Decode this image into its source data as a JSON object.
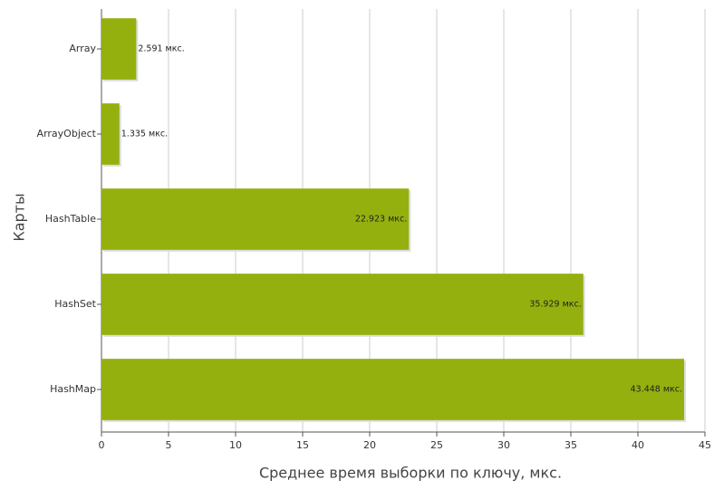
{
  "chart_data": {
    "type": "bar",
    "orientation": "horizontal",
    "x_label": "Среднее время выборки по ключу, мкс.",
    "y_label": "Карты",
    "categories": [
      "Array",
      "ArrayObject",
      "HashTable",
      "HashSet",
      "HashMap"
    ],
    "values": [
      2.591,
      1.335,
      22.923,
      35.929,
      43.448
    ],
    "value_labels": [
      "2.591 мкс.",
      "1.335 мкс.",
      "22.923 мкс.",
      "35.929 мкс.",
      "43.448 мкс."
    ],
    "color": "#94b00e",
    "xlim": [
      0,
      45
    ],
    "xticks": [
      0,
      5,
      10,
      15,
      20,
      25,
      30,
      35,
      40,
      45
    ],
    "grid": true
  }
}
